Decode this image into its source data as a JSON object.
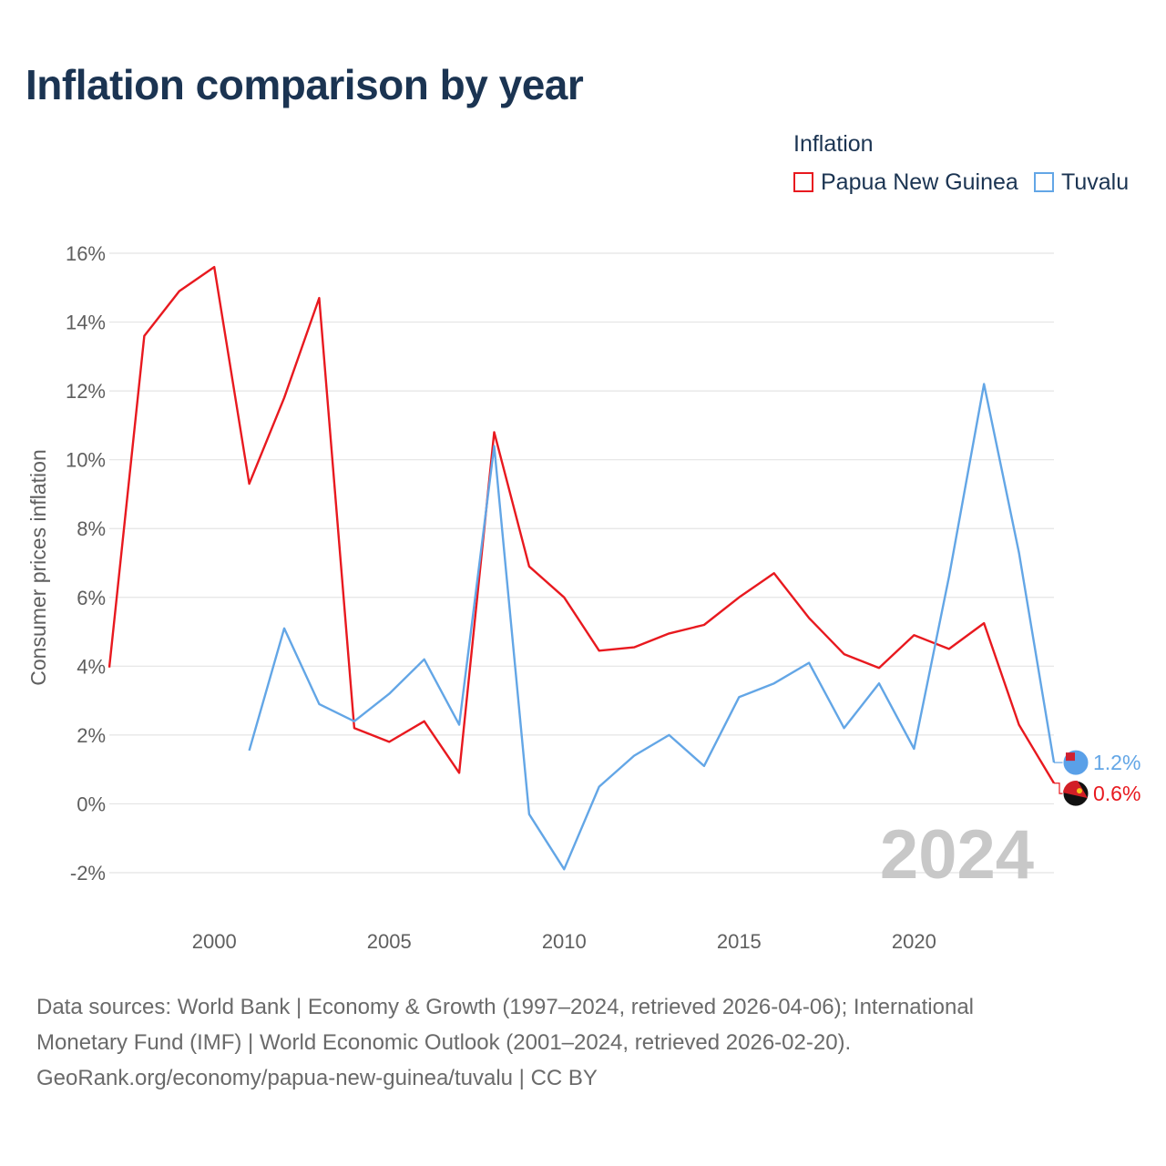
{
  "title": "Inflation comparison by year",
  "legend": {
    "title": "Inflation",
    "items": [
      {
        "label": "Papua New Guinea",
        "color": "#e8191f"
      },
      {
        "label": "Tuvalu",
        "color": "#63a6e6"
      }
    ]
  },
  "footer": {
    "line1": "Data sources: World Bank | Economy & Growth (1997–2024, retrieved 2026-04-06); International",
    "line2": "Monetary Fund (IMF) | World Economic Outlook (2001–2024, retrieved 2026-02-20).",
    "line3": "GeoRank.org/economy/papua-new-guinea/tuvalu | CC BY"
  },
  "chart_data": {
    "type": "line",
    "title": "Inflation comparison by year",
    "xlabel": "",
    "ylabel": "Consumer prices inflation",
    "xlim": [
      1997,
      2024
    ],
    "ylim": [
      -2,
      16
    ],
    "x_ticks": [
      2000,
      2005,
      2010,
      2015,
      2020
    ],
    "y_ticks": [
      -2,
      0,
      2,
      4,
      6,
      8,
      10,
      12,
      14,
      16
    ],
    "y_tick_labels": [
      "-2%",
      "0%",
      "2%",
      "4%",
      "6%",
      "8%",
      "10%",
      "12%",
      "14%",
      "16%"
    ],
    "grid": true,
    "watermark_year": "2024",
    "series": [
      {
        "name": "Papua New Guinea",
        "color": "#e8191f",
        "end_label": "0.6%",
        "x": [
          1997,
          1998,
          1999,
          2000,
          2001,
          2002,
          2003,
          2004,
          2005,
          2006,
          2007,
          2008,
          2009,
          2010,
          2011,
          2012,
          2013,
          2014,
          2015,
          2016,
          2017,
          2018,
          2019,
          2020,
          2021,
          2022,
          2023,
          2024
        ],
        "values": [
          3.96,
          13.6,
          14.9,
          15.6,
          9.3,
          11.8,
          14.7,
          2.2,
          1.8,
          2.4,
          0.9,
          10.8,
          6.9,
          6.0,
          4.45,
          4.55,
          4.95,
          5.2,
          6.0,
          6.7,
          5.4,
          4.35,
          3.95,
          4.9,
          4.5,
          5.25,
          2.3,
          0.6
        ]
      },
      {
        "name": "Tuvalu",
        "color": "#63a6e6",
        "end_label": "1.2%",
        "x": [
          2001,
          2002,
          2003,
          2004,
          2005,
          2006,
          2007,
          2008,
          2009,
          2010,
          2011,
          2012,
          2013,
          2014,
          2015,
          2016,
          2017,
          2018,
          2019,
          2020,
          2021,
          2022,
          2023,
          2024
        ],
        "values": [
          1.55,
          5.1,
          2.9,
          2.4,
          3.2,
          4.2,
          2.3,
          10.4,
          -0.3,
          -1.9,
          0.5,
          1.4,
          2.0,
          1.1,
          3.1,
          3.5,
          4.1,
          2.2,
          3.5,
          1.6,
          6.6,
          12.2,
          7.3,
          1.2
        ]
      }
    ]
  }
}
